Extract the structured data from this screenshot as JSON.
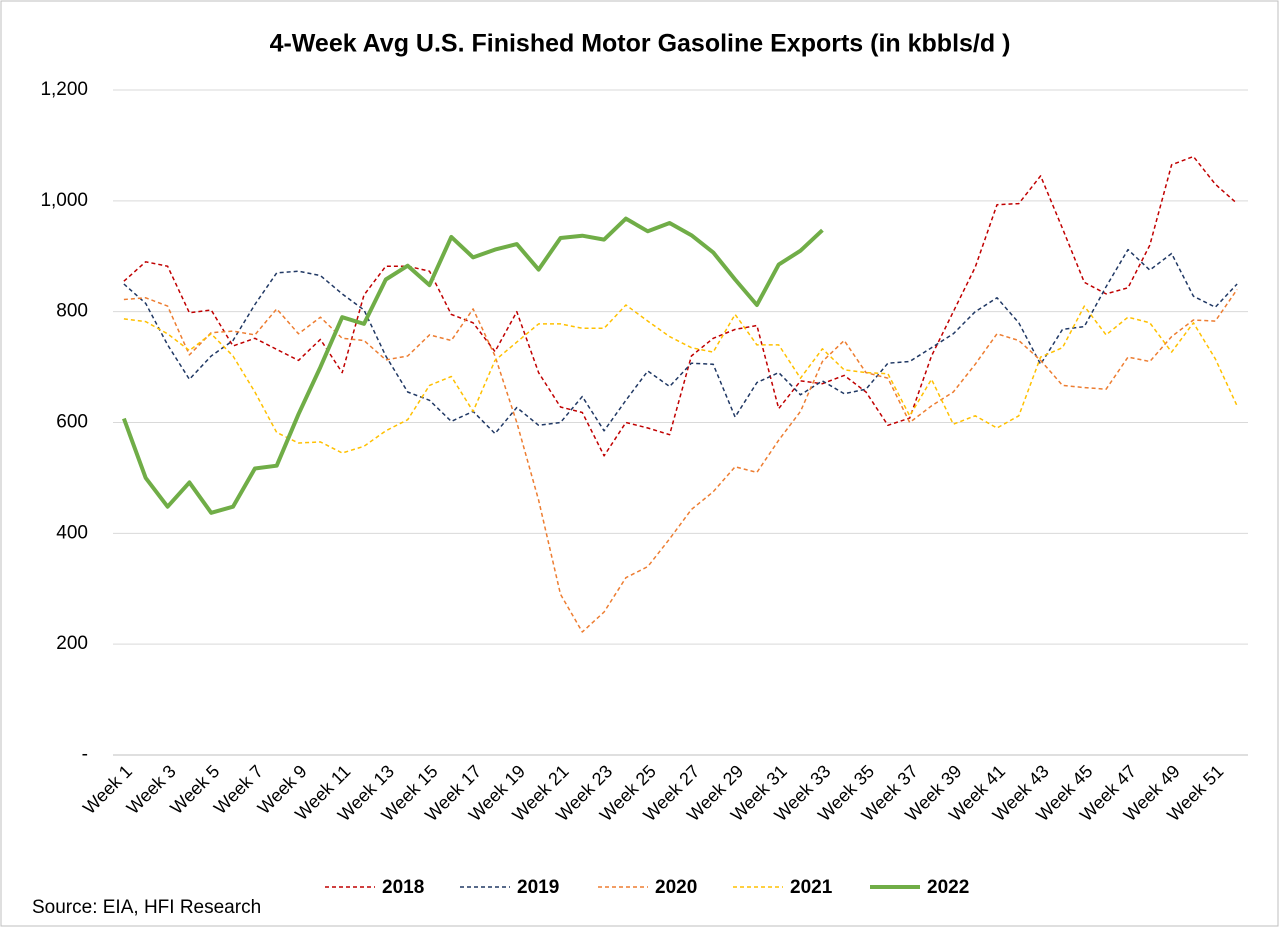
{
  "chart_data": {
    "type": "line",
    "title": "4-Week Avg U.S. Finished Motor Gasoline Exports  (in kbbls/d )",
    "source": "Source: EIA, HFI Research",
    "categories": [
      "Week 1",
      null,
      "Week 3",
      null,
      "Week 5",
      null,
      "Week 7",
      null,
      "Week 9",
      null,
      "Week 11",
      null,
      "Week 13",
      null,
      "Week 15",
      null,
      "Week 17",
      null,
      "Week 19",
      null,
      "Week 21",
      null,
      "Week 23",
      null,
      "Week 25",
      null,
      "Week 27",
      null,
      "Week 29",
      null,
      "Week 31",
      null,
      "Week 33",
      null,
      "Week 35",
      null,
      "Week 37",
      null,
      "Week 39",
      null,
      "Week 41",
      null,
      "Week 43",
      null,
      "Week 45",
      null,
      "Week 47",
      null,
      "Week 49",
      null,
      "Week 51",
      null
    ],
    "ylim": [
      0,
      1200
    ],
    "yticks": [
      {
        "value": 0,
        "label": "-"
      },
      200,
      400,
      600,
      800,
      {
        "value": 1000,
        "label": "1,000"
      },
      {
        "value": 1200,
        "label": "1,200"
      }
    ],
    "grid": true,
    "legend": "bottom",
    "series": [
      {
        "name": "2018",
        "color": "#c00000",
        "line_style": "dashed",
        "values": [
          855,
          890,
          882,
          798,
          803,
          738,
          752,
          732,
          712,
          750,
          690,
          830,
          882,
          882,
          873,
          795,
          780,
          728,
          800,
          690,
          628,
          618,
          540,
          600,
          590,
          578,
          720,
          752,
          768,
          775,
          625,
          675,
          670,
          685,
          655,
          595,
          608,
          720,
          800,
          880,
          993,
          995,
          1045,
          950,
          853,
          832,
          843,
          920,
          1065,
          1080,
          1030,
          995
        ]
      },
      {
        "name": "2019",
        "color": "#203864",
        "line_style": "dashed",
        "values": [
          850,
          815,
          740,
          678,
          720,
          748,
          813,
          870,
          873,
          865,
          832,
          803,
          720,
          655,
          640,
          602,
          620,
          580,
          627,
          595,
          600,
          647,
          585,
          640,
          693,
          665,
          707,
          705,
          610,
          672,
          690,
          650,
          675,
          652,
          660,
          707,
          710,
          735,
          760,
          800,
          825,
          780,
          705,
          768,
          773,
          845,
          912,
          875,
          905,
          828,
          808,
          850
        ]
      },
      {
        "name": "2020",
        "color": "#ed7d31",
        "line_style": "dashed",
        "values": [
          822,
          825,
          810,
          722,
          762,
          765,
          758,
          805,
          760,
          790,
          752,
          748,
          713,
          720,
          758,
          748,
          805,
          720,
          600,
          460,
          290,
          222,
          258,
          320,
          340,
          390,
          443,
          475,
          520,
          510,
          568,
          620,
          710,
          748,
          690,
          680,
          600,
          630,
          655,
          705,
          760,
          748,
          712,
          667,
          663,
          660,
          718,
          710,
          755,
          785,
          783,
          840
        ]
      },
      {
        "name": "2021",
        "color": "#ffc000",
        "line_style": "dashed",
        "values": [
          787,
          782,
          760,
          730,
          760,
          720,
          655,
          582,
          563,
          565,
          545,
          557,
          585,
          605,
          667,
          683,
          620,
          712,
          745,
          778,
          778,
          770,
          770,
          812,
          783,
          755,
          735,
          727,
          795,
          740,
          740,
          680,
          733,
          695,
          690,
          688,
          612,
          678,
          597,
          612,
          590,
          612,
          718,
          735,
          810,
          758,
          790,
          780,
          727,
          780,
          715,
          630
        ]
      },
      {
        "name": "2022",
        "color": "#70ad47",
        "line_style": "solid",
        "values": [
          607,
          500,
          448,
          492,
          437,
          448,
          517,
          522,
          615,
          700,
          790,
          778,
          858,
          883,
          848,
          935,
          898,
          912,
          922,
          876,
          933,
          937,
          930,
          968,
          945,
          960,
          938,
          907,
          858,
          812,
          885,
          910,
          947,
          null,
          null,
          null,
          null,
          null,
          null,
          null,
          null,
          null,
          null,
          null,
          null,
          null,
          null,
          null,
          null,
          null,
          null,
          null
        ]
      }
    ]
  }
}
